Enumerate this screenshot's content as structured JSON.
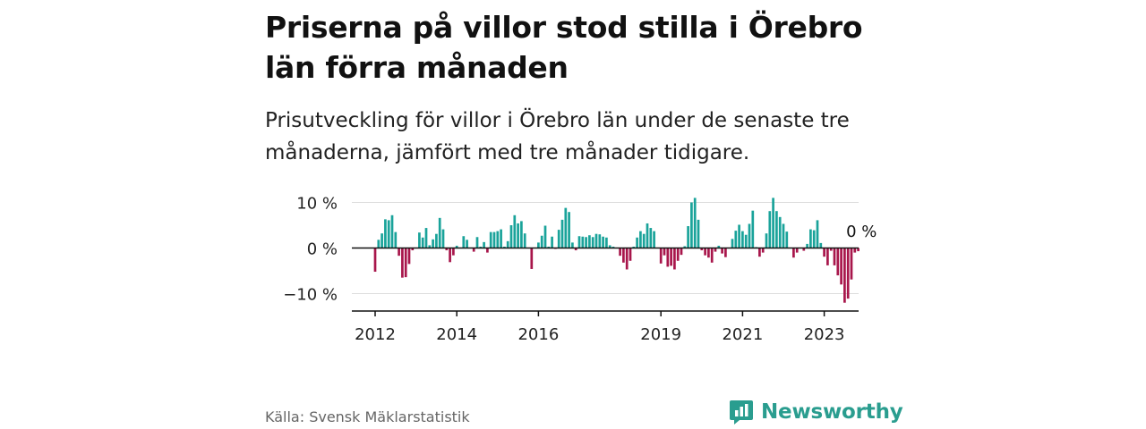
{
  "header": {
    "title": "Priserna på villor stod stilla i Örebro län förra månaden",
    "subtitle": "Prisutveckling för villor i Örebro län under de senaste tre månaderna, jämfört med tre månader tidigare."
  },
  "footer": {
    "source": "Källa: Svensk Mäklarstatistik",
    "brand": "Newsworthy",
    "brand_icon": "newsworthy-logo-icon"
  },
  "colors": {
    "positive": "#1aa39a",
    "negative": "#a8164b",
    "grid": "#dddddd",
    "axis": "#111111",
    "brand": "#2a9d8f"
  },
  "chart_data": {
    "type": "bar",
    "x_start": "2012-01",
    "y_ticks": [
      10,
      0,
      -10
    ],
    "y_tick_labels": [
      "10 %",
      "0 %",
      "−10 %"
    ],
    "x_ticks": [
      "2012",
      "2014",
      "2016",
      "2019",
      "2021",
      "2023"
    ],
    "ylim": [
      -12.5,
      12
    ],
    "last_value_label": "0 %",
    "values": [
      -5.2,
      1.8,
      3.2,
      6.3,
      6.1,
      7.2,
      3.5,
      -1.7,
      -6.5,
      -6.4,
      -3.5,
      -0.5,
      0,
      3.4,
      2.3,
      4.4,
      0.6,
      1.9,
      3.1,
      6.6,
      4.1,
      -0.5,
      -3.1,
      -1.6,
      0.5,
      0,
      2.6,
      1.8,
      0,
      -0.8,
      2.4,
      0.3,
      1.3,
      -1,
      3.5,
      3.5,
      3.7,
      4.1,
      0.3,
      1.5,
      5,
      7.2,
      5.4,
      5.9,
      3.2,
      0,
      -4.6,
      0,
      1.2,
      2.7,
      4.9,
      0.3,
      2.5,
      -0.2,
      4,
      6.2,
      8.8,
      7.9,
      1.2,
      -0.5,
      2.6,
      2.5,
      2.4,
      2.8,
      2.4,
      3.1,
      3,
      2.5,
      2.3,
      0.6,
      0.3,
      0,
      -1.7,
      -3.2,
      -4.7,
      -2.8,
      0.3,
      2.3,
      3.7,
      3.1,
      5.4,
      4.4,
      3.7,
      0,
      -3.4,
      -1.6,
      -4.1,
      -3.9,
      -4.7,
      -2.8,
      -1.5,
      0.4,
      4.8,
      10,
      11,
      6.2,
      -0.5,
      -1.6,
      -2.1,
      -3.2,
      -0.8,
      0.5,
      -1.2,
      -2,
      0,
      2,
      3.8,
      5.1,
      3.7,
      2.9,
      5.3,
      8.2,
      0.2,
      -1.9,
      -1,
      3.2,
      8.1,
      11,
      8.1,
      6.8,
      5.3,
      3.6,
      0,
      -2.1,
      -1,
      0,
      -0.6,
      0.9,
      4.1,
      3.9,
      6.1,
      1.1,
      -1.9,
      -3.8,
      -0.6,
      -3.8,
      -6,
      -8,
      -12,
      -11.1,
      -6.9,
      -1,
      -0.7,
      0
    ]
  }
}
